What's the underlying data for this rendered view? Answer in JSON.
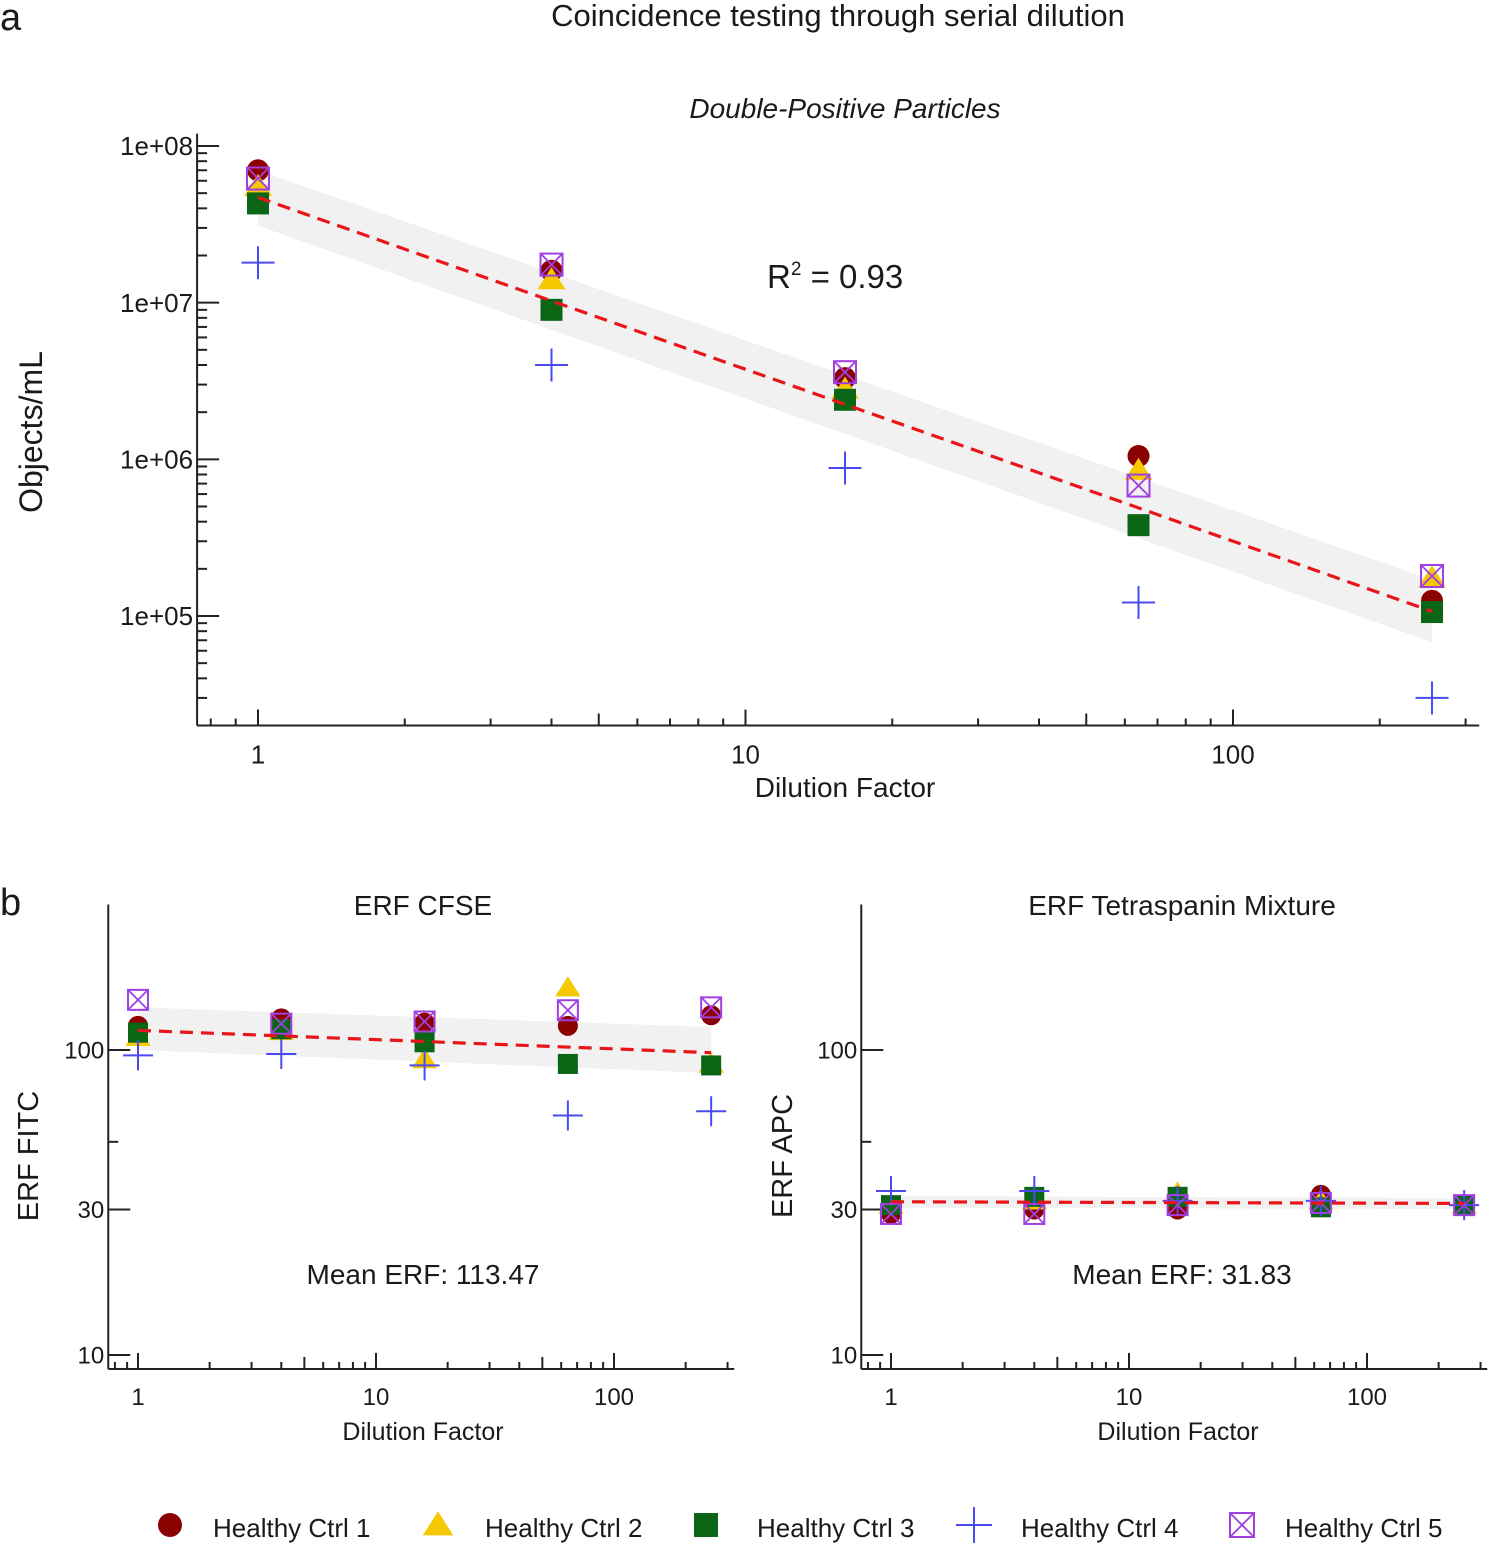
{
  "figure": {
    "panel_a_letter": "a",
    "panel_b_letter": "b",
    "main_title": "Coincidence testing through serial dilution"
  },
  "colors": {
    "ctrl1": "#8b0000",
    "ctrl2": "#f5c800",
    "ctrl3": "#0a6614",
    "ctrl4": "#4a4af0",
    "ctrl5": "#a040e0",
    "fit_line": "#e8161a",
    "band": "#eeeeee"
  },
  "legend": [
    {
      "label": "Healthy Ctrl 1",
      "marker": "circle",
      "color": "#8b0000"
    },
    {
      "label": "Healthy Ctrl 2",
      "marker": "triangle",
      "color": "#f5c800"
    },
    {
      "label": "Healthy Ctrl 3",
      "marker": "square",
      "color": "#0a6614"
    },
    {
      "label": "Healthy Ctrl 4",
      "marker": "plus",
      "color": "#4a4af0"
    },
    {
      "label": "Healthy Ctrl 5",
      "marker": "boxed-x",
      "color": "#a040e0"
    }
  ],
  "chart_data": [
    {
      "type": "scatter",
      "title": "Double-Positive Particles",
      "xlabel": "Dilution Factor",
      "ylabel": "Objects/mL",
      "x_scale": "log",
      "y_scale": "log",
      "xlim": [
        0.75,
        320
      ],
      "ylim": [
        20000,
        120000000
      ],
      "x_ticks": [
        1,
        10,
        100
      ],
      "x_tick_labels": [
        "1",
        "10",
        "100"
      ],
      "y_ticks": [
        100000,
        1000000,
        10000000,
        100000000
      ],
      "y_tick_labels": [
        "1e+05",
        "1e+06",
        "1e+07",
        "1e+08"
      ],
      "annotation_main": "R",
      "annotation_sup": "2",
      "annotation_rest": " = 0.93",
      "x": [
        1,
        4,
        16,
        64,
        256
      ],
      "series": [
        {
          "name": "Healthy Ctrl 1",
          "values": [
            70000000,
            16000000,
            3300000,
            1050000,
            125000
          ]
        },
        {
          "name": "Healthy Ctrl 2",
          "values": [
            55000000,
            14000000,
            2800000,
            850000,
            175000
          ]
        },
        {
          "name": "Healthy Ctrl 3",
          "values": [
            43000000,
            9000000,
            2400000,
            380000,
            106000
          ]
        },
        {
          "name": "Healthy Ctrl 4",
          "values": [
            18000000,
            4000000,
            880000,
            122000,
            30000
          ]
        },
        {
          "name": "Healthy Ctrl 5",
          "values": [
            62000000,
            17500000,
            3600000,
            680000,
            180000
          ]
        }
      ],
      "fit": {
        "x": [
          1,
          256
        ],
        "y": [
          47000000,
          107000
        ]
      },
      "band": {
        "x": [
          1,
          256
        ],
        "upper": [
          70000000,
          170000
        ],
        "lower": [
          31000000,
          68000
        ]
      }
    },
    {
      "type": "scatter",
      "title": "ERF CFSE",
      "xlabel": "Dilution Factor",
      "ylabel": "ERF FITC",
      "x_scale": "log",
      "y_scale": "log",
      "xlim": [
        0.75,
        320
      ],
      "ylim": [
        9,
        300
      ],
      "x_ticks": [
        1,
        10,
        100
      ],
      "x_tick_labels": [
        "1",
        "10",
        "100"
      ],
      "y_ticks": [
        10,
        30,
        100
      ],
      "y_tick_labels": [
        "10",
        "30",
        "100"
      ],
      "annotation": "Mean ERF: 113.47",
      "x": [
        1,
        4,
        16,
        64,
        256
      ],
      "series": [
        {
          "name": "Healthy Ctrl 1",
          "values": [
            120,
            127,
            123,
            120,
            130
          ]
        },
        {
          "name": "Healthy Ctrl 2",
          "values": [
            110,
            115,
            93,
            160,
            90
          ]
        },
        {
          "name": "Healthy Ctrl 3",
          "values": [
            114,
            117,
            106,
            90,
            89
          ]
        },
        {
          "name": "Healthy Ctrl 4",
          "values": [
            96,
            97,
            89,
            61,
            63
          ]
        },
        {
          "name": "Healthy Ctrl 5",
          "values": [
            146,
            122,
            124,
            135,
            138
          ]
        }
      ],
      "fit": {
        "x": [
          1,
          256
        ],
        "y": [
          116,
          98
        ]
      },
      "band": {
        "x": [
          1,
          256
        ],
        "upper": [
          138,
          119
        ],
        "lower": [
          100,
          84
        ]
      }
    },
    {
      "type": "scatter",
      "title": "ERF Tetraspanin Mixture",
      "xlabel": "Dilution Factor",
      "ylabel": "ERF APC",
      "x_scale": "log",
      "y_scale": "log",
      "xlim": [
        0.75,
        320
      ],
      "ylim": [
        9,
        300
      ],
      "x_ticks": [
        1,
        10,
        100
      ],
      "x_tick_labels": [
        "1",
        "10",
        "100"
      ],
      "y_ticks": [
        10,
        30,
        100
      ],
      "y_tick_labels": [
        "10",
        "30",
        "100"
      ],
      "annotation": "Mean ERF: 31.83",
      "x": [
        1,
        4,
        16,
        64,
        256
      ],
      "series": [
        {
          "name": "Healthy Ctrl 1",
          "values": [
            29,
            30,
            30,
            33.5,
            31
          ]
        },
        {
          "name": "Healthy Ctrl 2",
          "values": [
            31,
            32,
            34,
            32,
            31
          ]
        },
        {
          "name": "Healthy Ctrl 3",
          "values": [
            31,
            33,
            33,
            30.5,
            31
          ]
        },
        {
          "name": "Healthy Ctrl 4",
          "values": [
            34.5,
            34.5,
            32,
            32,
            31
          ]
        },
        {
          "name": "Healthy Ctrl 5",
          "values": [
            29,
            29,
            31,
            31.5,
            31
          ]
        }
      ],
      "fit": {
        "x": [
          1,
          256
        ],
        "y": [
          31.8,
          31.4
        ]
      },
      "band": {
        "x": [
          1,
          256
        ],
        "upper": [
          33.2,
          32.7
        ],
        "lower": [
          30.4,
          30.1
        ]
      }
    }
  ]
}
